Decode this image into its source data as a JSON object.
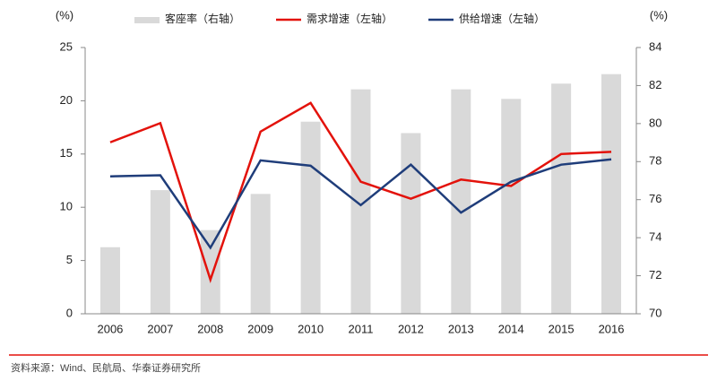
{
  "chart_data": {
    "type": "combo",
    "categories": [
      "2006",
      "2007",
      "2008",
      "2009",
      "2010",
      "2011",
      "2012",
      "2013",
      "2014",
      "2015",
      "2016"
    ],
    "series": [
      {
        "name": "客座率（右轴）",
        "type": "bar",
        "axis": "y2",
        "color": "#d9d9d9",
        "values": [
          73.5,
          76.5,
          74.4,
          76.3,
          80.1,
          81.8,
          79.5,
          81.8,
          81.3,
          82.1,
          82.6
        ]
      },
      {
        "name": "需求增速（左轴）",
        "type": "line",
        "axis": "y",
        "color": "#e3120b",
        "values": [
          16.1,
          17.9,
          3.2,
          17.1,
          19.8,
          12.4,
          10.8,
          12.6,
          12.0,
          15.0,
          15.2
        ]
      },
      {
        "name": "供给增速（左轴）",
        "type": "line",
        "axis": "y",
        "color": "#1f3d7a",
        "values": [
          12.9,
          13.0,
          6.2,
          14.4,
          13.9,
          10.2,
          14.0,
          9.5,
          12.4,
          14.0,
          14.5
        ]
      }
    ],
    "ylabel": "(%)",
    "y2label": "(%)",
    "ylim": [
      0,
      25
    ],
    "yticks": [
      0,
      5,
      10,
      15,
      20,
      25
    ],
    "y2lim": [
      70,
      84
    ],
    "y2ticks": [
      70,
      72,
      74,
      76,
      78,
      80,
      82,
      84
    ],
    "source": "资料来源：Wind、民航局、华泰证券研究所"
  }
}
